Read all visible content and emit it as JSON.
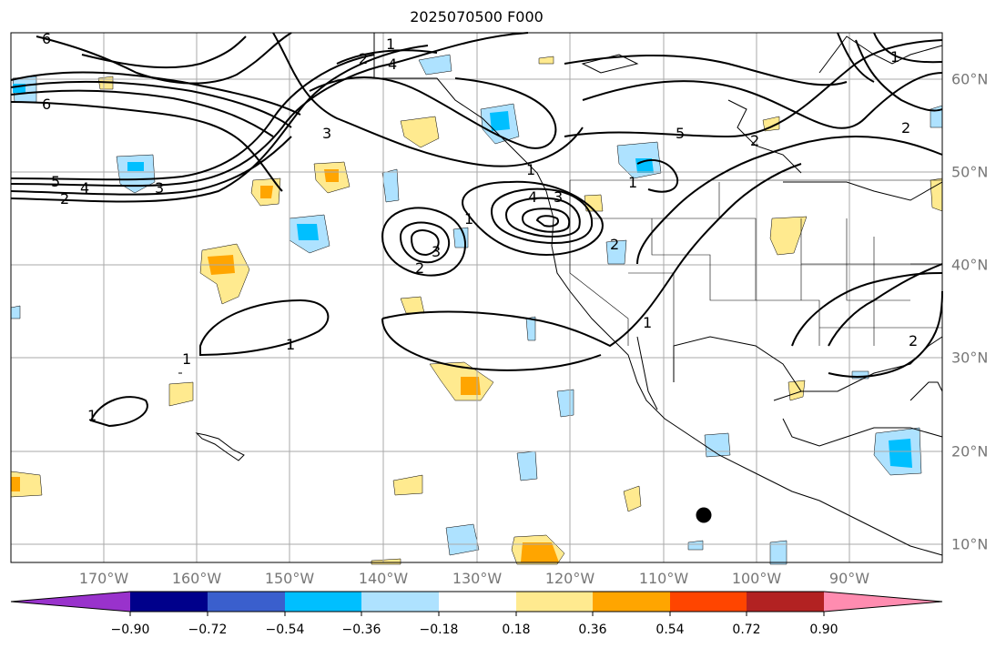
{
  "title": "2025070500 F000",
  "longitude_labels": [
    "170°W",
    "160°W",
    "150°W",
    "140°W",
    "130°W",
    "120°W",
    "110°W",
    "100°W",
    "90°W"
  ],
  "latitude_labels": [
    "60°N",
    "50°N",
    "40°N",
    "30°N",
    "20°N",
    "10°N"
  ],
  "colorbar": {
    "tick_labels": [
      "−0.90",
      "−0.72",
      "−0.54",
      "−0.36",
      "−0.18",
      "0.18",
      "0.36",
      "0.54",
      "0.72",
      "0.90"
    ],
    "colors": [
      "#9932cc",
      "#00008b",
      "#3a5fcd",
      "#00bfff",
      "#aee2ff",
      "#ffffff",
      "#ffea8f",
      "#ffa500",
      "#ff4500",
      "#b22222",
      "#ff8cb0"
    ]
  },
  "contour_labels": [
    "1",
    "2",
    "3",
    "4",
    "5",
    "6"
  ],
  "colors": {
    "contour": "#000000",
    "grid": "#aaaaaa",
    "axis_label": "#777777",
    "neg_light": "#aee2ff",
    "neg_mid": "#00bfff",
    "pos_light": "#ffea8f",
    "pos_mid": "#ffa500"
  }
}
